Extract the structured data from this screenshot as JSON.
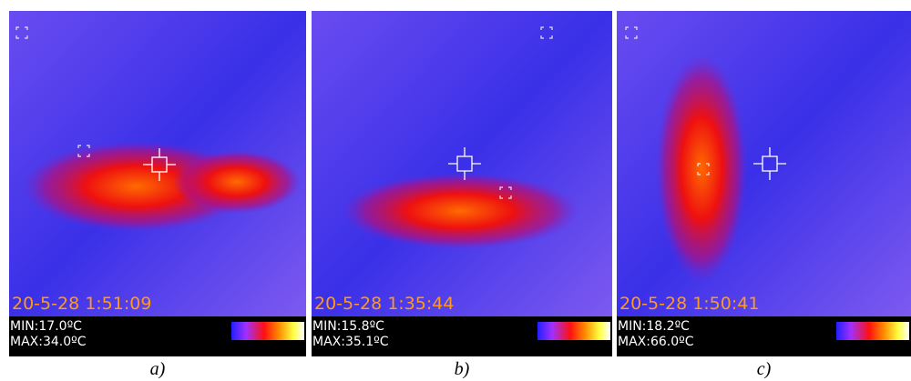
{
  "panels": [
    {
      "timestamp": "20-5-28 1:51:09",
      "min": "MIN:17.0ºC",
      "max": "MAX:34.0ºC",
      "caption": "a)"
    },
    {
      "timestamp": "20-5-28 1:35:44",
      "min": "MIN:15.8ºC",
      "max": "MAX:35.1ºC",
      "caption": "b)"
    },
    {
      "timestamp": "20-5-28 1:50:41",
      "min": "MIN:18.2ºC",
      "max": "MAX:66.0ºC",
      "caption": "c)"
    }
  ]
}
